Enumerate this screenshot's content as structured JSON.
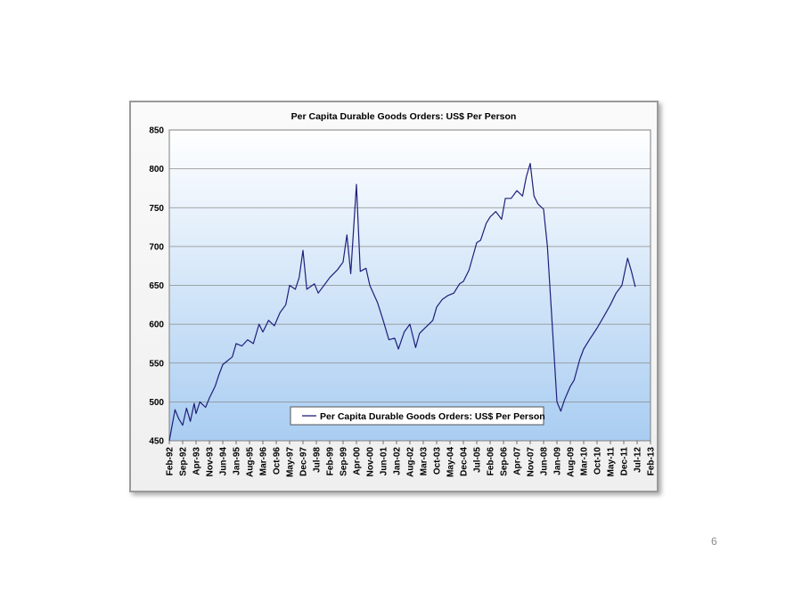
{
  "page_number": "6",
  "chart_data": {
    "type": "line",
    "title": "Per Capita Durable Goods Orders: US$ Per Person",
    "xlabel": "",
    "ylabel": "",
    "ylim": [
      450,
      850
    ],
    "yticks": [
      450,
      500,
      550,
      600,
      650,
      700,
      750,
      800,
      850
    ],
    "x_range": [
      "Feb-92",
      "Feb-13"
    ],
    "x_tick_labels": [
      "Feb-92",
      "Sep-92",
      "Apr-93",
      "Nov-93",
      "Jun-94",
      "Jan-95",
      "Aug-95",
      "Mar-96",
      "Oct-96",
      "May-97",
      "Dec-97",
      "Jul-98",
      "Feb-99",
      "Sep-99",
      "Apr-00",
      "Nov-00",
      "Jun-01",
      "Jan-02",
      "Aug-02",
      "Mar-03",
      "Oct-03",
      "May-04",
      "Dec-04",
      "Jul-05",
      "Feb-06",
      "Sep-06",
      "Apr-07",
      "Nov-07",
      "Jun-08",
      "Jan-09",
      "Aug-09",
      "Mar-10",
      "Oct-10",
      "May-11",
      "Dec-11",
      "Jul-12",
      "Feb-13"
    ],
    "grid": true,
    "legend_position": "bottom-center",
    "colors": {
      "line": "#1f1f7a",
      "plot_top": "#ffffff",
      "plot_bottom": "#a9cdf2"
    },
    "series": [
      {
        "name": "Per Capita Durable Goods Orders: US$ Per Person",
        "points": [
          [
            "Feb-92",
            450
          ],
          [
            "May-92",
            490
          ],
          [
            "Jul-92",
            478
          ],
          [
            "Sep-92",
            470
          ],
          [
            "Nov-92",
            492
          ],
          [
            "Jan-93",
            475
          ],
          [
            "Mar-93",
            498
          ],
          [
            "Apr-93",
            485
          ],
          [
            "Jun-93",
            500
          ],
          [
            "Sep-93",
            493
          ],
          [
            "Nov-93",
            505
          ],
          [
            "Feb-94",
            520
          ],
          [
            "Apr-94",
            535
          ],
          [
            "Jun-94",
            548
          ],
          [
            "Aug-94",
            552
          ],
          [
            "Nov-94",
            558
          ],
          [
            "Jan-95",
            575
          ],
          [
            "Apr-95",
            572
          ],
          [
            "Jul-95",
            580
          ],
          [
            "Oct-95",
            575
          ],
          [
            "Jan-96",
            600
          ],
          [
            "Mar-96",
            590
          ],
          [
            "Jun-96",
            605
          ],
          [
            "Sep-96",
            598
          ],
          [
            "Dec-96",
            615
          ],
          [
            "Mar-97",
            625
          ],
          [
            "May-97",
            650
          ],
          [
            "Aug-97",
            645
          ],
          [
            "Oct-97",
            660
          ],
          [
            "Dec-97",
            695
          ],
          [
            "Feb-98",
            645
          ],
          [
            "Jun-98",
            652
          ],
          [
            "Aug-98",
            640
          ],
          [
            "Nov-98",
            650
          ],
          [
            "Feb-99",
            660
          ],
          [
            "Jun-99",
            670
          ],
          [
            "Sep-99",
            680
          ],
          [
            "Nov-99",
            715
          ],
          [
            "Jan-00",
            665
          ],
          [
            "Apr-00",
            780
          ],
          [
            "Jun-00",
            668
          ],
          [
            "Sep-00",
            672
          ],
          [
            "Nov-00",
            650
          ],
          [
            "Mar-01",
            628
          ],
          [
            "Jun-01",
            605
          ],
          [
            "Sep-01",
            580
          ],
          [
            "Dec-01",
            582
          ],
          [
            "Feb-02",
            568
          ],
          [
            "May-02",
            590
          ],
          [
            "Aug-02",
            600
          ],
          [
            "Nov-02",
            570
          ],
          [
            "Jan-03",
            588
          ],
          [
            "Mar-03",
            593
          ],
          [
            "Jun-03",
            600
          ],
          [
            "Aug-03",
            605
          ],
          [
            "Oct-03",
            622
          ],
          [
            "Jan-04",
            632
          ],
          [
            "Apr-04",
            637
          ],
          [
            "Jul-04",
            640
          ],
          [
            "Oct-04",
            652
          ],
          [
            "Dec-04",
            655
          ],
          [
            "Mar-05",
            670
          ],
          [
            "Jul-05",
            705
          ],
          [
            "Sep-05",
            708
          ],
          [
            "Dec-05",
            730
          ],
          [
            "Feb-06",
            738
          ],
          [
            "May-06",
            745
          ],
          [
            "Aug-06",
            735
          ],
          [
            "Oct-06",
            762
          ],
          [
            "Jan-07",
            762
          ],
          [
            "Apr-07",
            772
          ],
          [
            "Jul-07",
            765
          ],
          [
            "Sep-07",
            790
          ],
          [
            "Nov-07",
            807
          ],
          [
            "Jan-08",
            765
          ],
          [
            "Mar-08",
            755
          ],
          [
            "Jun-08",
            748
          ],
          [
            "Aug-08",
            700
          ],
          [
            "Oct-08",
            620
          ],
          [
            "Dec-08",
            540
          ],
          [
            "Jan-09",
            500
          ],
          [
            "Mar-09",
            488
          ],
          [
            "May-09",
            503
          ],
          [
            "Aug-09",
            520
          ],
          [
            "Oct-09",
            528
          ],
          [
            "Jan-10",
            555
          ],
          [
            "Mar-10",
            568
          ],
          [
            "Jun-10",
            580
          ],
          [
            "Oct-10",
            595
          ],
          [
            "Feb-11",
            612
          ],
          [
            "May-11",
            625
          ],
          [
            "Aug-11",
            640
          ],
          [
            "Nov-11",
            650
          ],
          [
            "Feb-12",
            685
          ],
          [
            "Apr-12",
            668
          ],
          [
            "Jun-12",
            648
          ]
        ]
      }
    ]
  }
}
